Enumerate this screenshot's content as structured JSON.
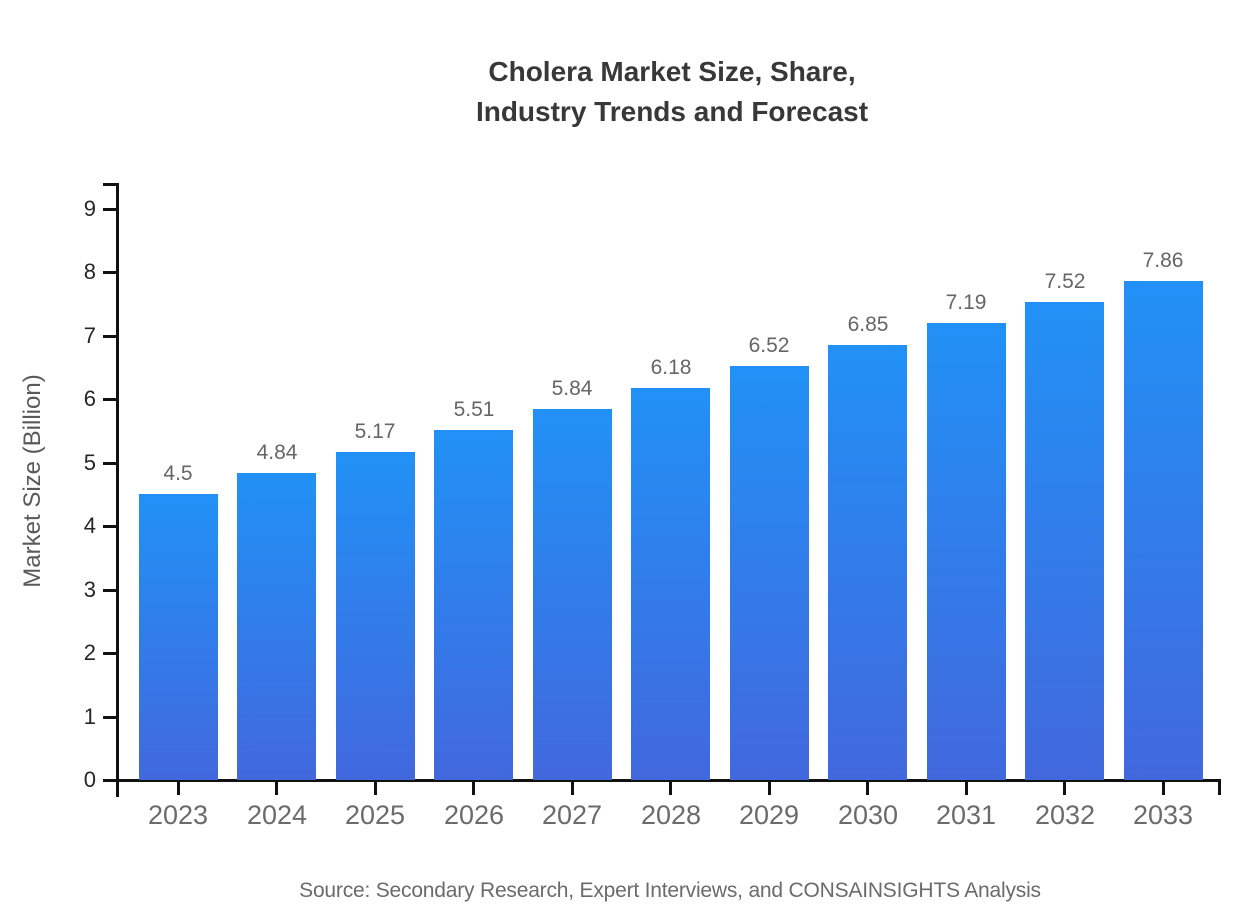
{
  "title": {
    "line1": "Cholera Market Size, Share,",
    "line2": "Industry Trends and Forecast"
  },
  "source": "Source: Secondary Research, Expert Interviews, and CONSAINSIGHTS Analysis",
  "chart_data": {
    "type": "bar",
    "title": "Cholera Market Size, Share, Industry Trends and Forecast",
    "categories": [
      "2023",
      "2024",
      "2025",
      "2026",
      "2027",
      "2028",
      "2029",
      "2030",
      "2031",
      "2032",
      "2033"
    ],
    "values": [
      4.5,
      4.84,
      5.17,
      5.51,
      5.84,
      6.18,
      6.52,
      6.85,
      7.19,
      7.52,
      7.86
    ],
    "value_labels": [
      "4.5",
      "4.84",
      "5.17",
      "5.51",
      "5.84",
      "6.18",
      "6.52",
      "6.85",
      "7.19",
      "7.52",
      "7.86"
    ],
    "xlabel": "",
    "ylabel": "Market Size (Billion)",
    "ylim": [
      0,
      9
    ],
    "yticks": [
      0,
      1,
      2,
      3,
      4,
      5,
      6,
      7,
      8,
      9
    ],
    "grid": false,
    "legend": false,
    "colors": {
      "bar_gradient_top": "#2191f6",
      "bar_gradient_bottom": "#4268de",
      "axis": "#111111",
      "title_text": "#383838",
      "y_tick_label": "#262626",
      "x_tick_label": "#6b6b6b",
      "value_label": "#666666",
      "axis_title": "#5a5a5a",
      "source_text": "#6b6b6b"
    }
  }
}
